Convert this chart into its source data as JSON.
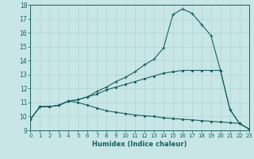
{
  "xlabel": "Humidex (Indice chaleur)",
  "ylabel": "",
  "background_color": "#c8e6e6",
  "line_color": "#1a6060",
  "grid_color": "#afd4d4",
  "xmin": 0,
  "xmax": 23,
  "ymin": 9,
  "ymax": 18,
  "line1_x": [
    0,
    1,
    2,
    3,
    4,
    5,
    6,
    7,
    8,
    9,
    10,
    11,
    12,
    13,
    14,
    15,
    16,
    17,
    18,
    19,
    20,
    21,
    22,
    23
  ],
  "line1_y": [
    9.8,
    10.7,
    10.7,
    10.8,
    11.1,
    11.2,
    11.4,
    11.8,
    12.1,
    12.5,
    12.8,
    13.2,
    13.7,
    14.1,
    14.9,
    17.3,
    17.7,
    17.4,
    16.6,
    15.8,
    13.3,
    10.5,
    9.5,
    9.1
  ],
  "line2_x": [
    0,
    1,
    2,
    3,
    4,
    5,
    6,
    7,
    8,
    9,
    10,
    11,
    12,
    13,
    14,
    15,
    16,
    17,
    18,
    19,
    20,
    21,
    22,
    23
  ],
  "line2_y": [
    9.8,
    10.7,
    10.7,
    10.8,
    11.1,
    11.2,
    11.4,
    11.6,
    11.9,
    12.1,
    12.3,
    12.5,
    12.7,
    12.9,
    13.1,
    13.2,
    13.3,
    13.3,
    13.3,
    13.3,
    13.3,
    10.5,
    9.5,
    9.1
  ],
  "line3_x": [
    0,
    1,
    2,
    3,
    4,
    5,
    6,
    7,
    8,
    9,
    10,
    11,
    12,
    13,
    14,
    15,
    16,
    17,
    18,
    19,
    20,
    21,
    22,
    23
  ],
  "line3_y": [
    9.8,
    10.7,
    10.7,
    10.8,
    11.1,
    11.0,
    10.8,
    10.6,
    10.4,
    10.3,
    10.2,
    10.1,
    10.05,
    10.0,
    9.9,
    9.85,
    9.8,
    9.75,
    9.7,
    9.65,
    9.6,
    9.55,
    9.5,
    9.1
  ]
}
